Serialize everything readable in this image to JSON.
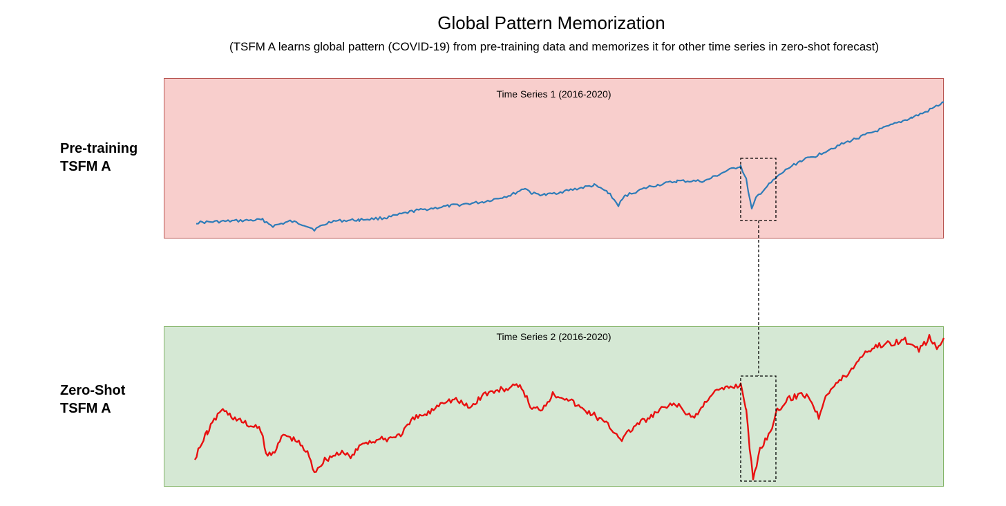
{
  "header": {
    "title": "Global Pattern Memorization",
    "subtitle": "(TSFM A learns global pattern (COVID-19) from pre-training data and memorizes it for other time series in zero-shot forecast)"
  },
  "rows": [
    {
      "label_line1": "Pre-training",
      "label_line2": "TSFM A",
      "panel_title": "Time Series 1 (2016-2020)",
      "line_color": "#2e7cb8",
      "panel_fill": "#f8cecc",
      "panel_border": "#b85450"
    },
    {
      "label_line1": "Zero-Shot",
      "label_line2": "TSFM A",
      "panel_title": "Time Series 2 (2016-2020)",
      "line_color": "#e81010",
      "panel_fill": "#d5e8d4",
      "panel_border": "#82b366"
    }
  ],
  "connector": {
    "style": "dashed",
    "color": "#000000"
  }
}
